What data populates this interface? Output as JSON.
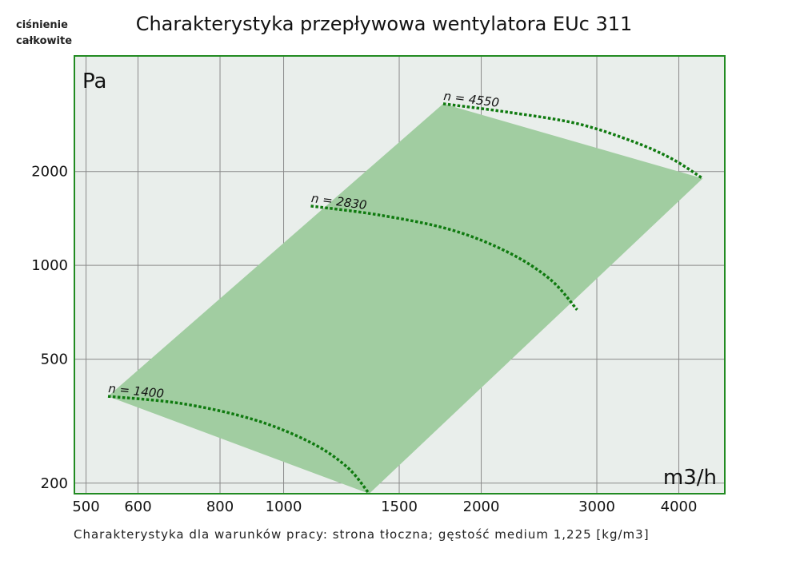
{
  "chart_data": {
    "type": "area",
    "title": "Charakterystyka przepływowa wentylatora EUc 311",
    "ylabel": "ciśnienie całkowite",
    "ylabel_lines": [
      "ciśnienie",
      "całkowite"
    ],
    "y_unit": "Pa",
    "x_unit": "m3/h",
    "x_scale": "log",
    "y_scale": "log",
    "xlim": [
      480,
      4700
    ],
    "ylim": [
      185,
      4700
    ],
    "x_ticks": [
      500,
      600,
      800,
      1000,
      1500,
      2000,
      3000,
      4000
    ],
    "y_ticks": [
      200,
      500,
      1000,
      2000
    ],
    "grid": true,
    "footnote": "Charakterystyka dla warunków pracy: strona tłoczna; gęstość medium 1,225 [kg/m3]",
    "operating_region": {
      "upper_edge": [
        [
          540,
          380
        ],
        [
          1750,
          3300
        ]
      ],
      "lower_edge": [
        [
          1350,
          185
        ],
        [
          4350,
          1900
        ]
      ]
    },
    "series": [
      {
        "name": "n = 1400",
        "x": [
          540,
          700,
          900,
          1100,
          1250,
          1350
        ],
        "y": [
          380,
          360,
          320,
          270,
          225,
          185
        ]
      },
      {
        "name": "n = 2830",
        "x": [
          1100,
          1400,
          1800,
          2200,
          2550,
          2800
        ],
        "y": [
          1550,
          1450,
          1300,
          1100,
          900,
          720
        ]
      },
      {
        "name": "n = 4550",
        "x": [
          1750,
          2200,
          2800,
          3400,
          3900,
          4350
        ],
        "y": [
          3300,
          3100,
          2850,
          2500,
          2200,
          1900
        ]
      }
    ],
    "colors": {
      "plot_background": "#e9eeeb",
      "frame": "#228b22",
      "region": "#a1cda1",
      "curve": "#0f7a0f",
      "grid": "#8a8a8a"
    }
  }
}
